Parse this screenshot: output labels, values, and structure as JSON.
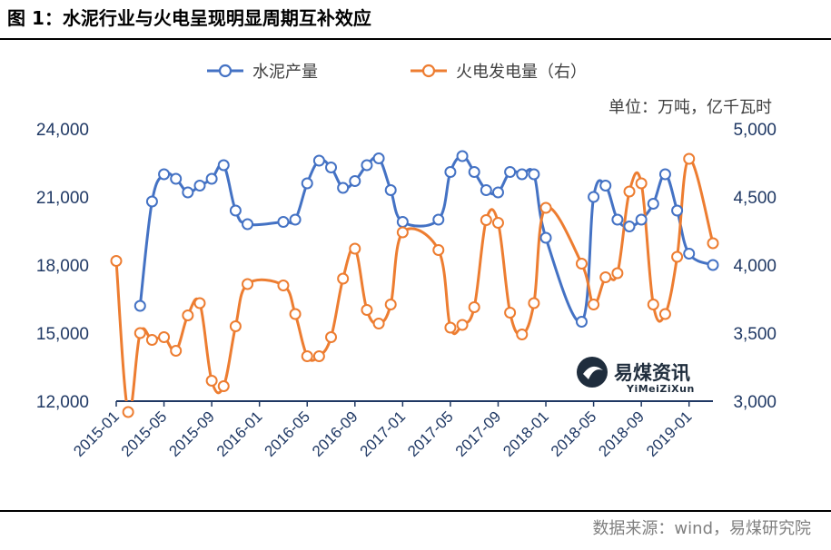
{
  "figure": {
    "title": "图 1：水泥行业与火电呈现明显周期互补效应",
    "source": "数据来源：wind，易煤研究院"
  },
  "watermark": {
    "name": "易煤资讯",
    "sub": "YiMeiZiXun"
  },
  "chart_data": {
    "type": "line",
    "unit_label": "单位：万吨，亿千瓦时",
    "legend_position": "top",
    "x": [
      "2015-01",
      "2015-02",
      "2015-03",
      "2015-04",
      "2015-05",
      "2015-06",
      "2015-07",
      "2015-08",
      "2015-09",
      "2015-10",
      "2015-11",
      "2015-12",
      "2016-01",
      "2016-02",
      "2016-03",
      "2016-04",
      "2016-05",
      "2016-06",
      "2016-07",
      "2016-08",
      "2016-09",
      "2016-10",
      "2016-11",
      "2016-12",
      "2017-01",
      "2017-02",
      "2017-03",
      "2017-04",
      "2017-05",
      "2017-06",
      "2017-07",
      "2017-08",
      "2017-09",
      "2017-10",
      "2017-11",
      "2017-12",
      "2018-01",
      "2018-02",
      "2018-03",
      "2018-04",
      "2018-05",
      "2018-06",
      "2018-07",
      "2018-08",
      "2018-09",
      "2018-10",
      "2018-11",
      "2018-12",
      "2019-01",
      "2019-02",
      "2019-03"
    ],
    "xtick_labels": [
      "2015-01",
      "2015-05",
      "2015-09",
      "2016-01",
      "2016-05",
      "2016-09",
      "2017-01",
      "2017-05",
      "2017-09",
      "2018-01",
      "2018-05",
      "2018-09",
      "2019-01"
    ],
    "y_left": {
      "range": [
        12000,
        24000
      ],
      "ticks": [
        "12,000",
        "15,000",
        "18,000",
        "21,000",
        "24,000"
      ]
    },
    "y_right": {
      "range": [
        3000,
        5000
      ],
      "ticks": [
        "3,000",
        "3,500",
        "4,000",
        "4,500",
        "5,000"
      ]
    },
    "series": [
      {
        "name": "水泥产量",
        "axis": "left",
        "color": "#4472c4",
        "values": [
          null,
          null,
          16200,
          20800,
          22000,
          21800,
          21200,
          21500,
          21800,
          22400,
          20400,
          19800,
          null,
          null,
          19900,
          20000,
          21600,
          22600,
          22300,
          21400,
          21700,
          22400,
          22700,
          21300,
          19900,
          null,
          null,
          20000,
          22100,
          22800,
          22100,
          21300,
          21200,
          22100,
          22000,
          22000,
          19200,
          null,
          null,
          15500,
          21000,
          21500,
          20000,
          19700,
          20000,
          20700,
          22000,
          20400,
          18500,
          null,
          18000
        ]
      },
      {
        "name": "火电发电量（右）",
        "axis": "right",
        "color": "#ed7d31",
        "values": [
          4030,
          2920,
          3500,
          3450,
          3470,
          3370,
          3630,
          3720,
          3150,
          3110,
          3550,
          3860,
          null,
          null,
          3850,
          3640,
          3330,
          3330,
          3470,
          3900,
          4120,
          3670,
          3570,
          3710,
          4240,
          null,
          null,
          4110,
          3540,
          3560,
          3690,
          4330,
          4310,
          3650,
          3490,
          3720,
          4420,
          null,
          null,
          4010,
          3710,
          3910,
          3940,
          4540,
          4600,
          3710,
          3640,
          4060,
          4780,
          null,
          4160
        ]
      }
    ]
  }
}
